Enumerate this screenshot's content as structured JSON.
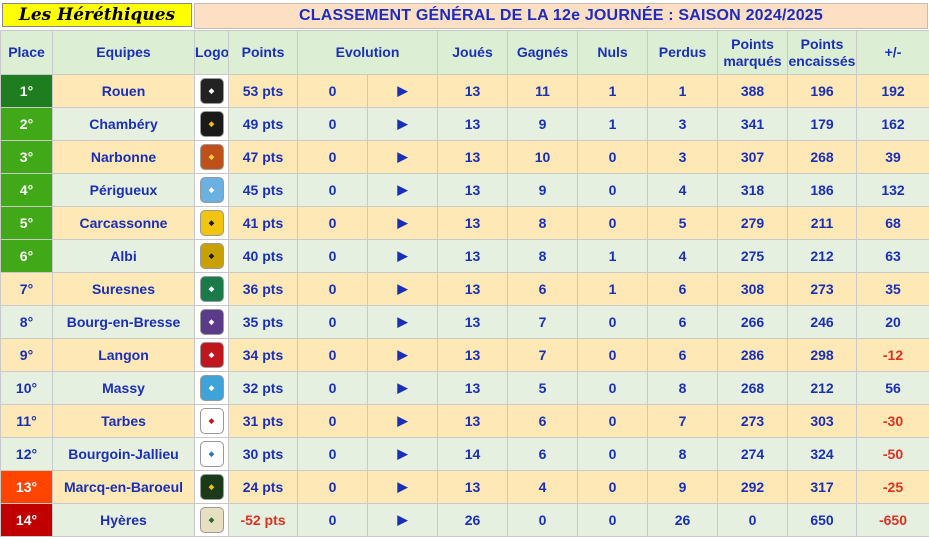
{
  "header": {
    "brand": "Les Héréthiques",
    "title": "CLASSEMENT GÉNÉRAL DE LA 12e JOURNÉE : SAISON 2024/2025"
  },
  "columns": {
    "place": "Place",
    "equipes": "Equipes",
    "logo": "Logo",
    "points": "Points",
    "evolution": "Evolution",
    "joues": "Joués",
    "gagnes": "Gagnés",
    "nuls": "Nuls",
    "perdus": "Perdus",
    "marques": "Points marqués",
    "encaisses": "Points encaissés",
    "diff": "+/-"
  },
  "colors": {
    "place_dark_green": "#1e7d1e",
    "place_green": "#41a817",
    "place_orange": "#ff4500",
    "place_red": "#c00000",
    "row_odd": "#fde8b6",
    "row_even": "#e6f0e0",
    "text_blue": "#1a2fb8",
    "negative_red": "#e03020"
  },
  "rows": [
    {
      "place": "1°",
      "team": "Rouen",
      "logo_icon": "rouen-logo-icon",
      "points": "53 pts",
      "evo": "0",
      "arrow": "▶",
      "played": "13",
      "won": "11",
      "draw": "1",
      "lost": "1",
      "scored": "388",
      "conceded": "196",
      "diff": "192"
    },
    {
      "place": "2°",
      "team": "Chambéry",
      "logo_icon": "chambery-logo-icon",
      "points": "49 pts",
      "evo": "0",
      "arrow": "▶",
      "played": "13",
      "won": "9",
      "draw": "1",
      "lost": "3",
      "scored": "341",
      "conceded": "179",
      "diff": "162"
    },
    {
      "place": "3°",
      "team": "Narbonne",
      "logo_icon": "narbonne-logo-icon",
      "points": "47 pts",
      "evo": "0",
      "arrow": "▶",
      "played": "13",
      "won": "10",
      "draw": "0",
      "lost": "3",
      "scored": "307",
      "conceded": "268",
      "diff": "39"
    },
    {
      "place": "4°",
      "team": "Périgueux",
      "logo_icon": "perigueux-logo-icon",
      "points": "45 pts",
      "evo": "0",
      "arrow": "▶",
      "played": "13",
      "won": "9",
      "draw": "0",
      "lost": "4",
      "scored": "318",
      "conceded": "186",
      "diff": "132"
    },
    {
      "place": "5°",
      "team": "Carcassonne",
      "logo_icon": "carcassonne-logo-icon",
      "points": "41 pts",
      "evo": "0",
      "arrow": "▶",
      "played": "13",
      "won": "8",
      "draw": "0",
      "lost": "5",
      "scored": "279",
      "conceded": "211",
      "diff": "68"
    },
    {
      "place": "6°",
      "team": "Albi",
      "logo_icon": "albi-logo-icon",
      "points": "40 pts",
      "evo": "0",
      "arrow": "▶",
      "played": "13",
      "won": "8",
      "draw": "1",
      "lost": "4",
      "scored": "275",
      "conceded": "212",
      "diff": "63"
    },
    {
      "place": "7°",
      "team": "Suresnes",
      "logo_icon": "suresnes-logo-icon",
      "points": "36 pts",
      "evo": "0",
      "arrow": "▶",
      "played": "13",
      "won": "6",
      "draw": "1",
      "lost": "6",
      "scored": "308",
      "conceded": "273",
      "diff": "35"
    },
    {
      "place": "8°",
      "team": "Bourg-en-Bresse",
      "logo_icon": "bourg-logo-icon",
      "points": "35 pts",
      "evo": "0",
      "arrow": "▶",
      "played": "13",
      "won": "7",
      "draw": "0",
      "lost": "6",
      "scored": "266",
      "conceded": "246",
      "diff": "20"
    },
    {
      "place": "9°",
      "team": "Langon",
      "logo_icon": "langon-logo-icon",
      "points": "34 pts",
      "evo": "0",
      "arrow": "▶",
      "played": "13",
      "won": "7",
      "draw": "0",
      "lost": "6",
      "scored": "286",
      "conceded": "298",
      "diff": "-12"
    },
    {
      "place": "10°",
      "team": "Massy",
      "logo_icon": "massy-logo-icon",
      "points": "32 pts",
      "evo": "0",
      "arrow": "▶",
      "played": "13",
      "won": "5",
      "draw": "0",
      "lost": "8",
      "scored": "268",
      "conceded": "212",
      "diff": "56"
    },
    {
      "place": "11°",
      "team": "Tarbes",
      "logo_icon": "tarbes-logo-icon",
      "points": "31 pts",
      "evo": "0",
      "arrow": "▶",
      "played": "13",
      "won": "6",
      "draw": "0",
      "lost": "7",
      "scored": "273",
      "conceded": "303",
      "diff": "-30"
    },
    {
      "place": "12°",
      "team": "Bourgoin-Jallieu",
      "logo_icon": "bourgoin-logo-icon",
      "points": "30 pts",
      "evo": "0",
      "arrow": "▶",
      "played": "14",
      "won": "6",
      "draw": "0",
      "lost": "8",
      "scored": "274",
      "conceded": "324",
      "diff": "-50"
    },
    {
      "place": "13°",
      "team": "Marcq-en-Baroeul",
      "logo_icon": "marcq-logo-icon",
      "points": "24 pts",
      "evo": "0",
      "arrow": "▶",
      "played": "13",
      "won": "4",
      "draw": "0",
      "lost": "9",
      "scored": "292",
      "conceded": "317",
      "diff": "-25"
    },
    {
      "place": "14°",
      "team": "Hyères",
      "logo_icon": "hyeres-logo-icon",
      "points": "-52 pts",
      "evo": "0",
      "arrow": "▶",
      "played": "26",
      "won": "0",
      "draw": "0",
      "lost": "26",
      "scored": "0",
      "conceded": "650",
      "diff": "-650"
    }
  ]
}
